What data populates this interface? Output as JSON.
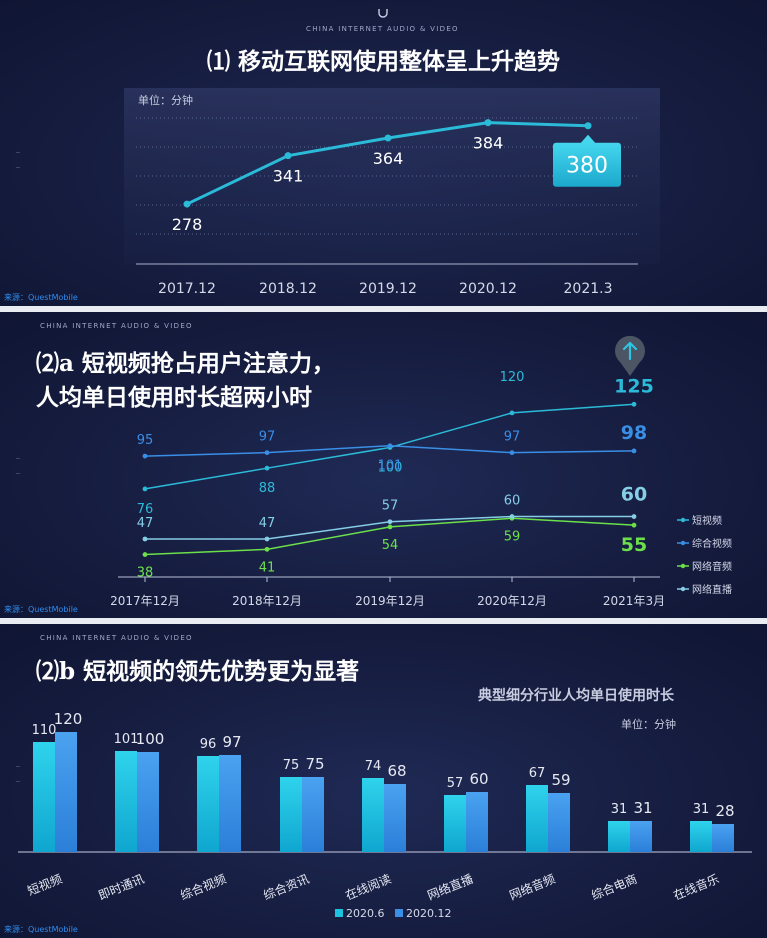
{
  "brand": "CHINA INTERNET AUDIO & VIDEO",
  "source": "来源：QuestMobile",
  "colors": {
    "teal": "#2bbbd8",
    "blue": "#3a8ee6",
    "green": "#6be04a",
    "lightblue": "#86cde6",
    "bar2020_6": "#1cc3e0",
    "bar2020_12": "#3a8ee6"
  },
  "panel1": {
    "title": "⑴ 移动互联网使用整体呈上升趋势",
    "unit": "单位：分钟",
    "chart_data": {
      "type": "line",
      "categories": [
        "2017.12",
        "2018.12",
        "2019.12",
        "2020.12",
        "2021.3"
      ],
      "values": [
        278,
        341,
        364,
        384,
        380
      ],
      "ylabel": "单位：分钟",
      "ylim": [
        200,
        420
      ],
      "highlight": {
        "index": 4,
        "label": "380"
      }
    }
  },
  "panel2": {
    "title_line1": "⑵a 短视频抢占用户注意力，",
    "title_line2": "人均单日使用时长超两小时",
    "up_icon": "up-arrow-icon",
    "chart_data": {
      "type": "line",
      "categories": [
        "2017年12月",
        "2018年12月",
        "2019年12月",
        "2020年12月",
        "2021年3月"
      ],
      "series": [
        {
          "name": "短视频",
          "values": [
            76,
            88,
            100,
            120,
            125
          ]
        },
        {
          "name": "综合视频",
          "values": [
            95,
            97,
            101,
            97,
            98
          ]
        },
        {
          "name": "网络音频",
          "values": [
            38,
            41,
            54,
            59,
            55
          ]
        },
        {
          "name": "网络直播",
          "values": [
            47,
            47,
            57,
            60,
            60
          ]
        }
      ],
      "legend": [
        "短视频",
        "综合视频",
        "网络音频",
        "网络直播"
      ],
      "legend_position": "right",
      "ylim": [
        25,
        135
      ]
    }
  },
  "panel3": {
    "title": "⑵b 短视频的领先优势更为显著",
    "subtitle": "典型细分行业人均单日使用时长",
    "unit": "单位：分钟",
    "chart_data": {
      "type": "bar",
      "title": "典型细分行业人均单日使用时长",
      "categories": [
        "短视频",
        "即时通讯",
        "综合视频",
        "综合资讯",
        "在线阅读",
        "网络直播",
        "网络音频",
        "综合电商",
        "在线音乐"
      ],
      "series": [
        {
          "name": "2020.6",
          "values": [
            110,
            101,
            96,
            75,
            74,
            57,
            67,
            31,
            31
          ]
        },
        {
          "name": "2020.12",
          "values": [
            120,
            100,
            97,
            75,
            68,
            60,
            59,
            31,
            28
          ]
        }
      ],
      "ylim": [
        0,
        130
      ],
      "ylabel": "单位：分钟",
      "legend_position": "bottom"
    }
  }
}
